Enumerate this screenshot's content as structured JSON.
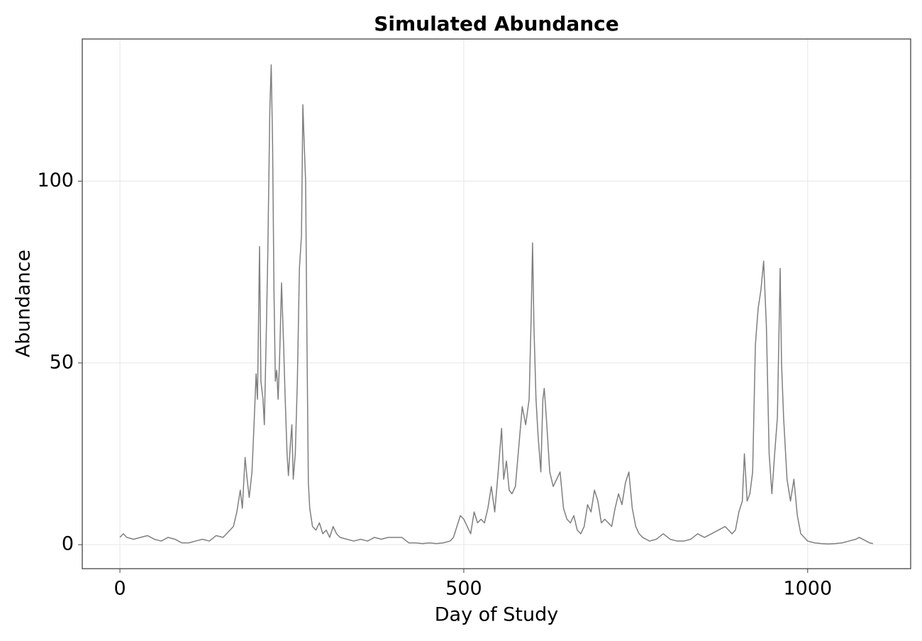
{
  "chart_data": {
    "type": "line",
    "title": "Simulated Abundance",
    "x_label": "Day of Study",
    "y_label": "Abundance",
    "xlim": [
      -54.75,
      1149.75
    ],
    "ylim": [
      -6.6,
      139.1
    ],
    "xticks": [
      0,
      500,
      1000
    ],
    "yticks": [
      0,
      50,
      100
    ],
    "grid": true,
    "series": [
      {
        "color": "#7f7f7f",
        "x": [
          0,
          5,
          10,
          20,
          30,
          40,
          50,
          60,
          70,
          80,
          90,
          100,
          110,
          120,
          130,
          140,
          150,
          160,
          165,
          170,
          175,
          178,
          182,
          185,
          188,
          192,
          195,
          198,
          200,
          203,
          205,
          208,
          210,
          213,
          215,
          218,
          220,
          222,
          224,
          226,
          228,
          230,
          232,
          235,
          238,
          240,
          243,
          245,
          248,
          250,
          252,
          255,
          258,
          261,
          264,
          266,
          268,
          270,
          272,
          274,
          276,
          280,
          285,
          290,
          295,
          300,
          305,
          310,
          315,
          320,
          330,
          340,
          350,
          360,
          370,
          380,
          390,
          400,
          410,
          420,
          430,
          440,
          450,
          460,
          470,
          480,
          485,
          490,
          495,
          500,
          505,
          510,
          515,
          520,
          525,
          530,
          535,
          540,
          545,
          550,
          555,
          558,
          562,
          566,
          570,
          575,
          580,
          585,
          590,
          595,
          598,
          600,
          602,
          605,
          608,
          612,
          615,
          617,
          620,
          625,
          630,
          635,
          640,
          645,
          650,
          655,
          660,
          665,
          670,
          675,
          680,
          685,
          690,
          695,
          700,
          705,
          710,
          715,
          720,
          725,
          730,
          735,
          740,
          745,
          750,
          755,
          760,
          770,
          780,
          790,
          800,
          810,
          820,
          830,
          840,
          850,
          860,
          870,
          880,
          890,
          895,
          900,
          905,
          908,
          912,
          916,
          920,
          924,
          928,
          932,
          936,
          940,
          944,
          948,
          952,
          956,
          960,
          962,
          965,
          970,
          975,
          980,
          985,
          990,
          1000,
          1010,
          1020,
          1030,
          1040,
          1050,
          1060,
          1070,
          1075,
          1080,
          1090,
          1095
        ],
        "values": [
          2,
          3,
          2,
          1.5,
          2,
          2.5,
          1.5,
          1,
          2,
          1.5,
          0.5,
          0.5,
          1,
          1.5,
          1,
          2.5,
          2,
          4,
          5,
          9,
          15,
          10,
          24,
          18,
          13,
          20,
          33,
          47,
          40,
          82,
          45,
          40,
          33,
          60,
          80,
          120,
          132,
          110,
          70,
          45,
          48,
          40,
          50,
          72,
          55,
          42,
          25,
          19,
          28,
          33,
          18,
          25,
          45,
          76,
          85,
          121,
          110,
          100,
          55,
          17,
          10,
          5,
          4,
          6,
          3,
          4,
          2,
          5,
          3,
          2,
          1.5,
          1,
          1.5,
          1,
          2,
          1.5,
          2,
          2,
          2,
          0.5,
          0.5,
          0.3,
          0.5,
          0.3,
          0.5,
          1,
          2,
          5,
          8,
          7,
          5,
          3,
          9,
          6,
          7,
          6,
          10,
          16,
          9,
          20,
          32,
          18,
          23,
          15,
          14,
          16,
          27,
          38,
          33,
          40,
          63,
          83,
          60,
          40,
          30,
          20,
          40,
          43,
          35,
          20,
          16,
          18,
          20,
          10,
          7,
          6,
          8,
          4,
          3,
          5,
          11,
          9,
          15,
          12,
          6,
          7,
          6,
          5,
          10,
          14,
          11,
          17,
          20,
          10,
          5,
          3,
          2,
          1,
          1.5,
          3,
          1.5,
          1,
          1,
          1.5,
          3,
          2,
          3,
          4,
          5,
          3,
          4,
          9,
          12,
          25,
          12,
          14,
          20,
          55,
          65,
          70,
          78,
          60,
          25,
          14,
          25,
          35,
          76,
          50,
          35,
          18,
          12,
          18,
          8,
          3,
          1,
          0.5,
          0.3,
          0.2,
          0.3,
          0.5,
          1,
          1.5,
          2,
          1.5,
          0.5,
          0.3
        ]
      }
    ]
  }
}
